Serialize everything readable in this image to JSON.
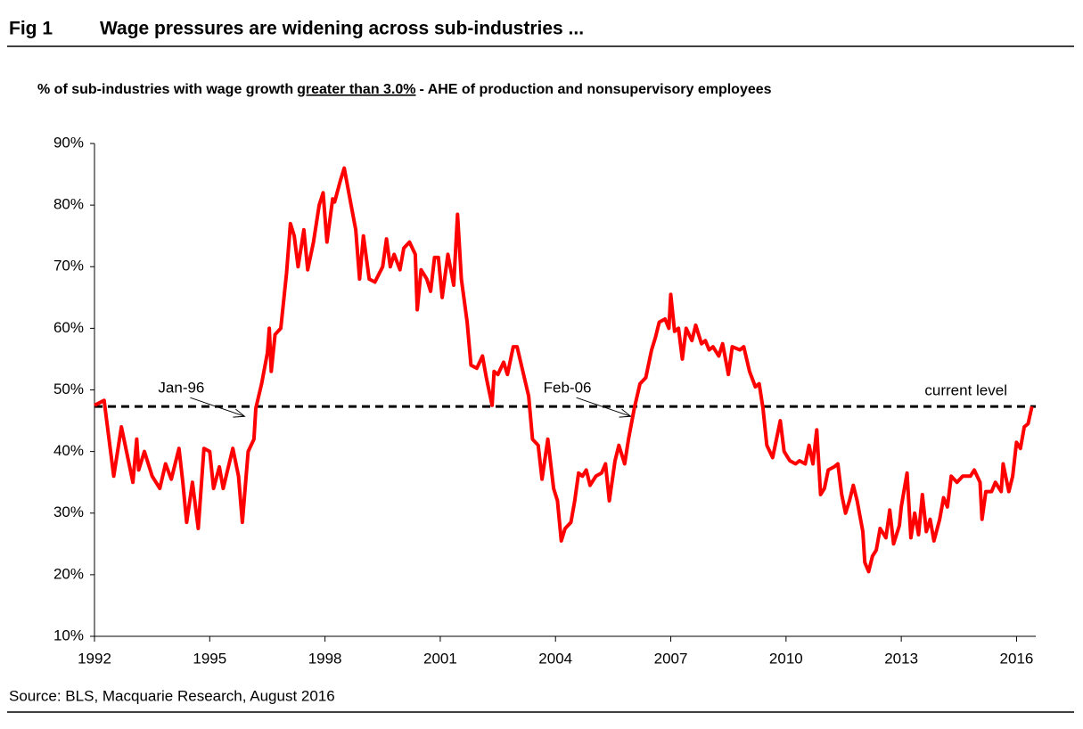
{
  "chart_data": {
    "type": "line",
    "figure_label": "Fig 1",
    "title": "Wage pressures are widening across sub-industries ...",
    "subtitle": [
      "% of sub-industries with wage growth",
      "greater than 3.0%",
      "- AHE of production and nonsupervisory employees"
    ],
    "source": "Source: BLS, Macquarie Research, August 2016",
    "x": [
      1992.0,
      1992.25,
      1992.4,
      1992.5,
      1992.7,
      1993.0,
      1993.1,
      1993.15,
      1993.3,
      1993.5,
      1993.7,
      1993.85,
      1994.0,
      1994.2,
      1994.3,
      1994.4,
      1994.55,
      1994.7,
      1994.85,
      1995.0,
      1995.1,
      1995.25,
      1995.35,
      1995.6,
      1995.75,
      1995.85,
      1996.0,
      1996.15,
      1996.2,
      1996.35,
      1996.5,
      1996.55,
      1996.6,
      1996.7,
      1996.85,
      1997.0,
      1997.1,
      1997.2,
      1997.3,
      1997.45,
      1997.55,
      1997.7,
      1997.85,
      1997.95,
      1998.05,
      1998.2,
      1998.25,
      1998.4,
      1998.5,
      1998.65,
      1998.8,
      1998.9,
      1999.0,
      1999.15,
      1999.3,
      1999.5,
      1999.6,
      1999.7,
      1999.8,
      1999.95,
      2000.05,
      2000.2,
      2000.35,
      2000.4,
      2000.5,
      2000.65,
      2000.75,
      2000.85,
      2000.95,
      2001.05,
      2001.2,
      2001.35,
      2001.45,
      2001.55,
      2001.7,
      2001.8,
      2001.95,
      2002.1,
      2002.2,
      2002.35,
      2002.4,
      2002.5,
      2002.65,
      2002.75,
      2002.9,
      2003.0,
      2003.15,
      2003.3,
      2003.4,
      2003.55,
      2003.65,
      2003.8,
      2003.95,
      2004.05,
      2004.15,
      2004.25,
      2004.4,
      2004.5,
      2004.6,
      2004.7,
      2004.8,
      2004.9,
      2005.05,
      2005.2,
      2005.3,
      2005.4,
      2005.55,
      2005.65,
      2005.8,
      2005.9,
      2006.05,
      2006.2,
      2006.35,
      2006.5,
      2006.6,
      2006.7,
      2006.85,
      2006.95,
      2007.0,
      2007.1,
      2007.2,
      2007.3,
      2007.4,
      2007.55,
      2007.65,
      2007.8,
      2007.9,
      2008.0,
      2008.1,
      2008.25,
      2008.35,
      2008.5,
      2008.6,
      2008.8,
      2008.9,
      2009.05,
      2009.2,
      2009.3,
      2009.4,
      2009.5,
      2009.65,
      2009.75,
      2009.85,
      2009.95,
      2010.1,
      2010.25,
      2010.35,
      2010.5,
      2010.6,
      2010.7,
      2010.8,
      2010.9,
      2011.0,
      2011.1,
      2011.25,
      2011.35,
      2011.45,
      2011.55,
      2011.65,
      2011.75,
      2011.85,
      2012.0,
      2012.05,
      2012.15,
      2012.25,
      2012.35,
      2012.45,
      2012.6,
      2012.7,
      2012.8,
      2012.95,
      2013.0,
      2013.15,
      2013.25,
      2013.35,
      2013.45,
      2013.55,
      2013.65,
      2013.75,
      2013.85,
      2014.0,
      2014.1,
      2014.2,
      2014.3,
      2014.45,
      2014.6,
      2014.8,
      2014.9,
      2015.05,
      2015.1,
      2015.2,
      2015.35,
      2015.45,
      2015.6,
      2015.65,
      2015.8,
      2015.9,
      2016.0,
      2016.1,
      2016.2,
      2016.3,
      2016.4
    ],
    "series": [
      {
        "name": "% of sub-industries",
        "color": "#ff0000",
        "values": [
          47.5,
          48.3,
          41,
          36,
          44,
          35,
          42,
          37,
          40,
          36,
          34,
          38,
          35.5,
          40.5,
          35,
          28.5,
          35,
          27.5,
          40.5,
          40,
          34,
          37.5,
          34,
          40.5,
          36,
          28.5,
          40,
          42,
          47,
          51,
          56,
          60,
          53,
          59,
          60,
          69,
          77,
          75,
          70,
          76,
          69.5,
          74,
          80,
          82,
          74,
          81,
          80.5,
          84,
          86,
          81,
          76,
          68,
          75,
          68,
          67.5,
          70,
          74.5,
          70,
          72,
          69.5,
          73,
          74,
          72,
          63,
          69.5,
          68,
          66,
          71.5,
          71.5,
          65,
          72,
          67,
          78.5,
          68,
          61,
          54,
          53.5,
          55.5,
          52,
          47.5,
          53,
          52.5,
          54.5,
          52.5,
          57,
          57,
          53,
          49,
          42,
          41,
          35.5,
          42,
          34,
          32,
          25.5,
          27.5,
          28.5,
          32,
          36.5,
          36,
          37,
          34.5,
          36,
          36.5,
          38,
          32,
          38.5,
          41,
          38,
          42,
          47,
          51,
          52,
          56.5,
          58.5,
          61,
          61.5,
          60,
          65.5,
          59.5,
          60,
          55,
          60,
          58,
          60.5,
          57.5,
          58,
          56.5,
          57,
          55.5,
          57.5,
          52.5,
          57,
          56.5,
          57,
          53,
          50.5,
          51,
          47,
          41,
          39,
          42,
          45,
          40,
          38.5,
          38,
          38.5,
          38,
          41,
          38,
          43.5,
          33,
          34,
          37,
          37.5,
          38,
          33,
          30,
          32,
          34.5,
          32,
          27,
          22,
          20.5,
          23,
          24,
          27.5,
          26,
          30.5,
          25,
          28,
          31,
          36.5,
          26,
          30,
          26.5,
          33,
          27,
          29,
          25.5,
          29,
          32.5,
          31,
          36,
          35,
          36,
          36,
          37,
          35,
          29,
          33.5,
          33.5,
          35,
          33.5,
          38,
          33.5,
          36,
          41.5,
          40.5,
          44,
          44.5,
          47.3
        ]
      }
    ],
    "reference_line": {
      "value": 47.3,
      "label": "current level",
      "color": "#000000"
    },
    "annotations": [
      {
        "text": "Jan-96",
        "x": 1996.0
      },
      {
        "text": "Feb-06",
        "x": 2006.05
      }
    ],
    "xlim": [
      1992,
      2016.5
    ],
    "xticks": [
      1992,
      1995,
      1998,
      2001,
      2004,
      2007,
      2010,
      2013,
      2016
    ],
    "ylim": [
      10,
      90
    ],
    "yticks": [
      {
        "value": 10,
        "label": "10%"
      },
      {
        "value": 20,
        "label": "20%"
      },
      {
        "value": 30,
        "label": "30%"
      },
      {
        "value": 40,
        "label": "40%"
      },
      {
        "value": 50,
        "label": "50%"
      },
      {
        "value": 60,
        "label": "60%"
      },
      {
        "value": 70,
        "label": "70%"
      },
      {
        "value": 80,
        "label": "80%"
      },
      {
        "value": 90,
        "label": "90%"
      }
    ],
    "grid": false
  }
}
